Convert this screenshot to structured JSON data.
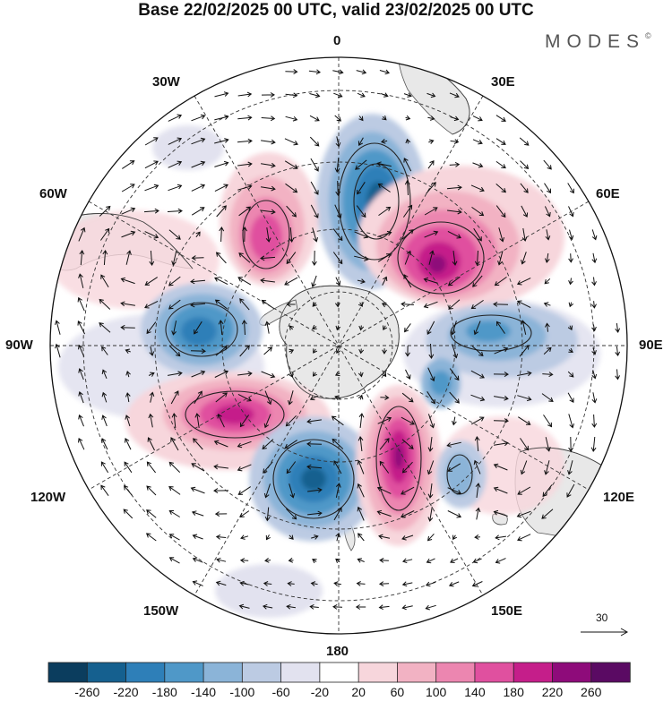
{
  "title": "Base 22/02/2025 00 UTC, valid 23/02/2025 00 UTC",
  "brand": {
    "text": "MODES",
    "mark": "©"
  },
  "meridian_labels": {
    "lon_0": "0",
    "lon_30e": "30E",
    "lon_60e": "60E",
    "lon_90e": "90E",
    "lon_120e": "120E",
    "lon_150e": "150E",
    "lon_180": "180",
    "lon_150w": "150W",
    "lon_120w": "120W",
    "lon_90w": "90W",
    "lon_60w": "60W",
    "lon_30w": "30W"
  },
  "reference_vector": {
    "value": "30"
  },
  "colorbar": {
    "labels": [
      "-260",
      "-220",
      "-180",
      "-140",
      "-100",
      "-60",
      "-20",
      "20",
      "60",
      "100",
      "140",
      "180",
      "220",
      "260"
    ],
    "colors": [
      "#0b3d5e",
      "#15608f",
      "#2e7fb8",
      "#4f98c8",
      "#8bb4d8",
      "#bccbe3",
      "#e2e2ef",
      "#ffffff",
      "#f7d6dc",
      "#f2b2c3",
      "#ec86b0",
      "#e0509f",
      "#c51e8a",
      "#8e0b7a",
      "#5a0a63"
    ]
  },
  "land_color": "#e8e8e8",
  "chart_data": {
    "type": "heatmap",
    "projection": "south polar stereographic",
    "anomalies": [
      {
        "sign": "negative",
        "peak": -220
      },
      {
        "sign": "positive",
        "peak": 200
      },
      {
        "sign": "negative",
        "peak": -140
      },
      {
        "sign": "positive",
        "peak": 220
      },
      {
        "sign": "negative",
        "peak": -200
      },
      {
        "sign": "positive",
        "peak": 200
      },
      {
        "sign": "negative",
        "peak": -180
      },
      {
        "sign": "positive",
        "peak": 180
      },
      {
        "sign": "negative",
        "peak": -100
      },
      {
        "sign": "negative",
        "peak": -120
      },
      {
        "sign": "positive",
        "peak": 60
      },
      {
        "sign": "positive",
        "peak": 60
      }
    ]
  }
}
